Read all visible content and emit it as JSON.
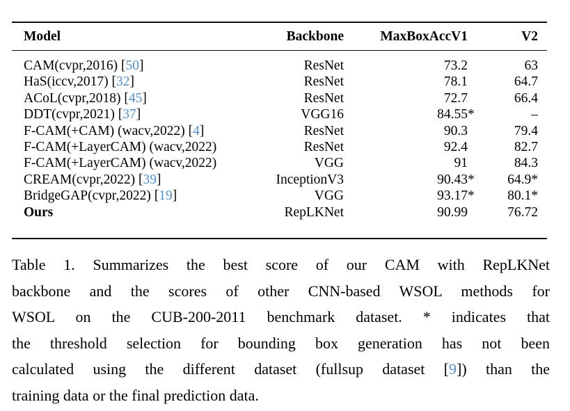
{
  "table": {
    "columns": [
      "Model",
      "Backbone",
      "MaxBoxAccV1",
      "V2"
    ],
    "rows": [
      {
        "model": "CAM(cvpr,2016)",
        "cite": "50",
        "backbone": "ResNet",
        "v1": "73.2",
        "v2": "63",
        "bold": false
      },
      {
        "model": "HaS(iccv,2017)",
        "cite": "32",
        "backbone": "ResNet",
        "v1": "78.1",
        "v2": "64.7",
        "bold": false
      },
      {
        "model": "ACoL(cvpr,2018)",
        "cite": "45",
        "backbone": "ResNet",
        "v1": "72.7",
        "v2": "66.4",
        "bold": false
      },
      {
        "model": "DDT(cvpr,2021)",
        "cite": "37",
        "backbone": "VGG16",
        "v1": "84.55*",
        "v2": "–",
        "bold": false
      },
      {
        "model": "F-CAM(+CAM) (wacv,2022)",
        "cite": "4",
        "backbone": "ResNet",
        "v1": "90.3",
        "v2": "79.4",
        "bold": false
      },
      {
        "model": "F-CAM(+LayerCAM) (wacv,2022)",
        "cite": null,
        "backbone": "ResNet",
        "v1": "92.4",
        "v2": "82.7",
        "bold": false
      },
      {
        "model": "F-CAM(+LayerCAM) (wacv,2022)",
        "cite": null,
        "backbone": "VGG",
        "v1": "91",
        "v2": "84.3",
        "bold": false
      },
      {
        "model": "CREAM(cvpr,2022)",
        "cite": "39",
        "backbone": "InceptionV3",
        "v1": "90.43*",
        "v2": "64.9*",
        "bold": false
      },
      {
        "model": "BridgeGAP(cvpr,2022)",
        "cite": "19",
        "backbone": "VGG",
        "v1": "93.17*",
        "v2": "80.1*",
        "bold": false
      },
      {
        "model": "Ours",
        "cite": null,
        "backbone": "RepLKNet",
        "v1": "90.99",
        "v2": "76.72",
        "bold": true
      }
    ]
  },
  "caption": {
    "lines": [
      {
        "text": "Table 1. Summarizes the best score of our CAM with RepLKNet"
      },
      {
        "text": "backbone and the scores of other CNN-based WSOL methods for"
      },
      {
        "text": "WSOL on the CUB-200-2011 benchmark dataset. * indicates that"
      },
      {
        "text": "the threshold selection for bounding box generation has not been"
      },
      {
        "text": "calculated using the different dataset (fullsup dataset [",
        "cite": "9",
        "text2": "]) than the"
      },
      {
        "text": "training data or the final prediction data.",
        "last": true
      }
    ]
  },
  "colors": {
    "citation_blue": "#4d8fd3",
    "text": "#000000",
    "rule": "#0d0d0d"
  }
}
